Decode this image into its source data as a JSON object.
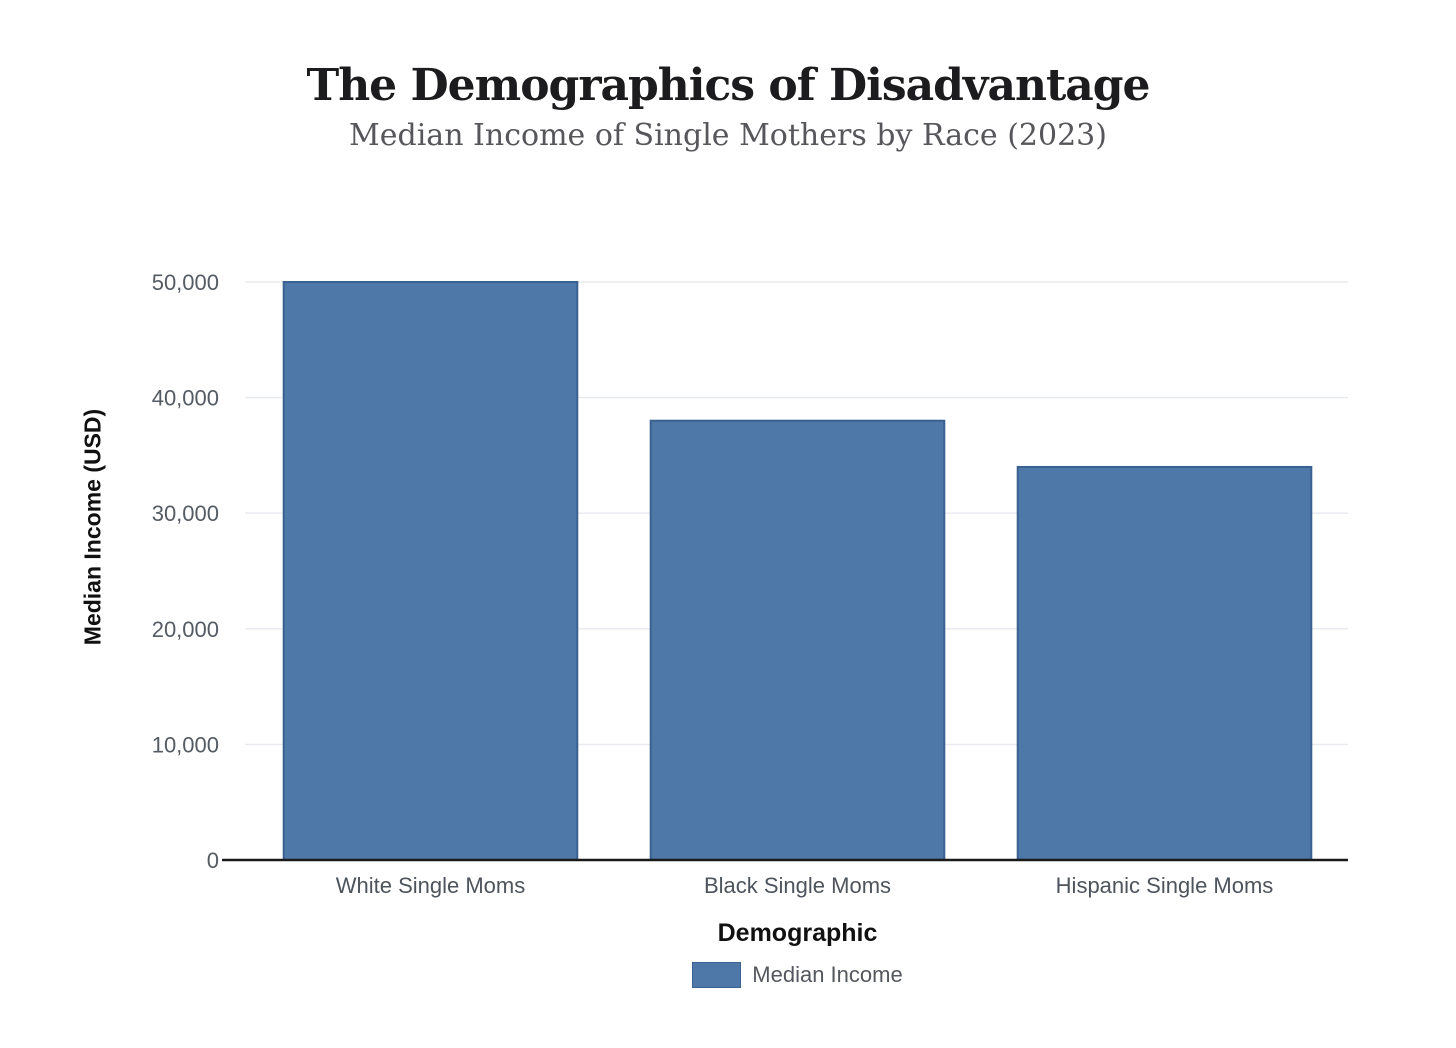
{
  "header": {
    "title": "The Demographics of Disadvantage",
    "subtitle": "Median Income of Single Mothers by Race (2023)"
  },
  "chart_data": {
    "type": "bar",
    "title": "The Demographics of Disadvantage",
    "subtitle": "Median Income of Single Mothers by Race (2023)",
    "categories": [
      "White Single Moms",
      "Black Single Moms",
      "Hispanic Single Moms"
    ],
    "series": [
      {
        "name": "Median Income",
        "values": [
          50000,
          38000,
          34000
        ]
      }
    ],
    "xlabel": "Demographic",
    "ylabel": "Median Income (USD)",
    "ylim": [
      0,
      50000
    ],
    "ytick_interval": 10000,
    "ytick_labels": [
      "0",
      "10,000",
      "20,000",
      "30,000",
      "40,000",
      "50,000"
    ],
    "grid": true,
    "legend": {
      "position": "bottom",
      "entries": [
        {
          "label": "Median Income",
          "color": "#4d78a8"
        }
      ]
    },
    "colors": {
      "bar_fill": "#4d78a8",
      "bar_border": "#3a6190",
      "gridline": "#e7eaef",
      "axis_line": "#1a1a1a",
      "tick_label": "#555b63",
      "category_label": "#4e545c",
      "title": "#1c1c1e",
      "subtitle": "#57575b",
      "axis_title": "#111111",
      "legend_label": "#54585e",
      "background": "#ffffff"
    }
  }
}
